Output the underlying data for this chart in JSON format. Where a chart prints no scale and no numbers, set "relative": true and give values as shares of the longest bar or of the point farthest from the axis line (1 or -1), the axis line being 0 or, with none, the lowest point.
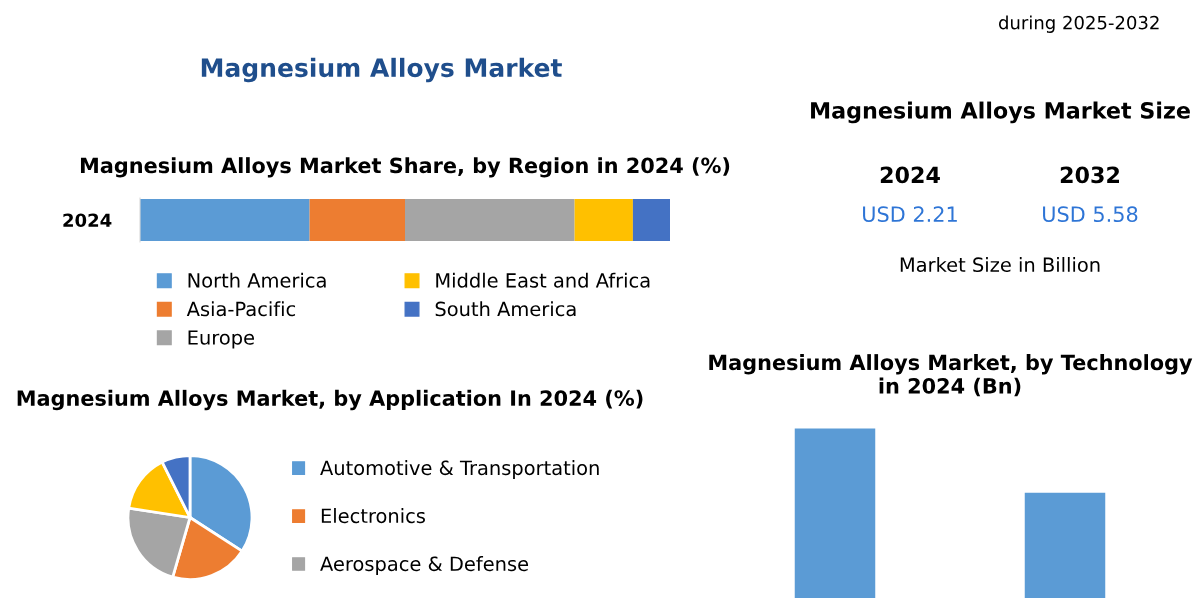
{
  "chart_data": [
    {
      "type": "bar",
      "title": "Magnesium Alloys Market",
      "subtitle": "Magnesium Alloys Market Share, by Region in 2024 (%)",
      "orientation": "horizontal",
      "stacked": true,
      "relative": true,
      "categories": [
        "2024"
      ],
      "legend": "bottom",
      "series": [
        {
          "name": "North America",
          "color": "#5b9bd5",
          "values": [
            0.32
          ]
        },
        {
          "name": "Asia-Pacific",
          "color": "#ed7d31",
          "values": [
            0.18
          ]
        },
        {
          "name": "Europe",
          "color": "#a5a5a5",
          "values": [
            0.32
          ]
        },
        {
          "name": "Middle East and Africa",
          "color": "#ffc000",
          "values": [
            0.11
          ]
        },
        {
          "name": "South America",
          "color": "#4472c4",
          "values": [
            0.07
          ]
        }
      ]
    },
    {
      "type": "other",
      "title": "Magnesium Alloys Market Size",
      "categories": [
        "2024",
        "2032"
      ],
      "value_labels": [
        "USD 2.21",
        "USD 5.58"
      ],
      "annotations": [
        "during 2025-2032",
        "Market Size in Billion"
      ]
    },
    {
      "type": "pie",
      "title": "Magnesium Alloys Market, by Application In 2024 (%)",
      "categories": [
        "Automotive & Transportation",
        "Electronics",
        "Aerospace & Defense",
        null,
        null
      ],
      "values": [
        34.1,
        20.4,
        22.9,
        15.2,
        7.4
      ],
      "colors": [
        "#5b9bd5",
        "#ed7d31",
        "#a5a5a5",
        "#ffc000",
        "#4472c4"
      ],
      "legend": "right"
    },
    {
      "type": "bar",
      "title": "Magnesium Alloys Market, by Technology in 2024 (Bn)",
      "relative": true,
      "categories": [
        null,
        null
      ],
      "values": [
        1,
        0.62
      ],
      "color": "#5b9bd5"
    }
  ]
}
